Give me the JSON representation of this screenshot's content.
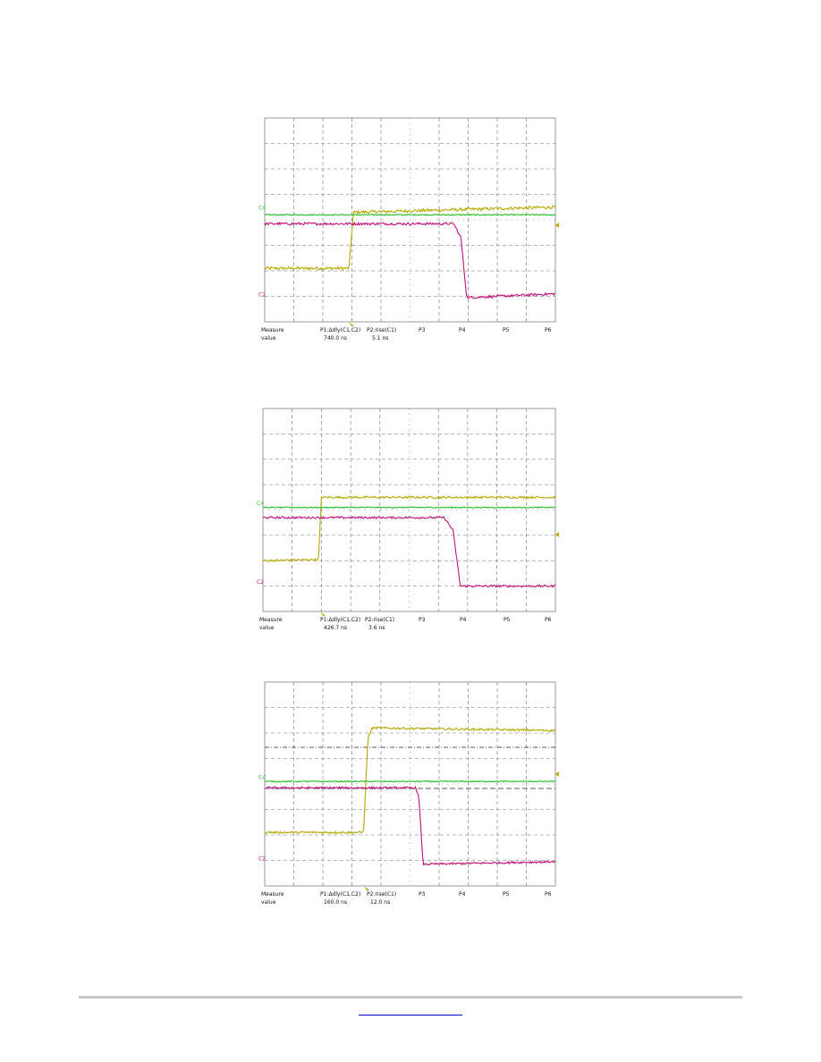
{
  "colors": {
    "ch1": "#b5a800",
    "ch2": "#c0127a",
    "ch4": "#22bb22",
    "grid": "#707070",
    "frame": "#808080",
    "marker": "#b5a800",
    "footer_rule": "#c8c8c8",
    "link": "#0000cc"
  },
  "footer": {
    "link_text": ""
  },
  "chart_data": [
    {
      "type": "line",
      "title": "",
      "grid": true,
      "xlim": [
        0,
        10
      ],
      "ylim": [
        0,
        8
      ],
      "channel_labels": [
        {
          "text": "C4",
          "color": "#22bb22",
          "y": 4.4
        },
        {
          "text": "C2",
          "color": "#c0127a",
          "y": 1.0
        }
      ],
      "measurements": {
        "header": [
          "Measure",
          "P1:Δdly(C1,C2)",
          "P2:rise(C1)",
          "P3",
          "P4",
          "P5",
          "P6"
        ],
        "value_label": "value",
        "values": [
          "740.0 ns",
          "5.1 ns"
        ]
      },
      "series": [
        {
          "channel": "C1",
          "color": "#b5a800",
          "noise": 0.06,
          "points": [
            [
              0,
              2.1
            ],
            [
              2.9,
              2.1
            ],
            [
              3.05,
              4.3
            ],
            [
              10,
              4.5
            ]
          ]
        },
        {
          "channel": "C4",
          "color": "#22bb22",
          "noise": 0.02,
          "points": [
            [
              0,
              4.2
            ],
            [
              10,
              4.2
            ]
          ]
        },
        {
          "channel": "C2",
          "color": "#c0127a",
          "noise": 0.05,
          "points": [
            [
              0,
              3.85
            ],
            [
              6.5,
              3.85
            ],
            [
              6.75,
              3.3
            ],
            [
              6.95,
              0.95
            ],
            [
              10,
              1.1
            ]
          ]
        }
      ]
    },
    {
      "type": "line",
      "title": "",
      "grid": true,
      "xlim": [
        0,
        10
      ],
      "ylim": [
        0,
        8
      ],
      "channel_labels": [
        {
          "text": "C4",
          "color": "#22bb22",
          "y": 4.2
        },
        {
          "text": "C2",
          "color": "#c0127a",
          "y": 1.1
        }
      ],
      "measurements": {
        "header": [
          "Measure",
          "P1:Δdly(C1,C2)",
          "P2:rise(C1)",
          "P3",
          "P4",
          "P5",
          "P6"
        ],
        "value_label": "value",
        "values": [
          "426.7 ns",
          "3.6 ns"
        ]
      },
      "series": [
        {
          "channel": "C1",
          "color": "#b5a800",
          "noise": 0.04,
          "points": [
            [
              0,
              2.0
            ],
            [
              1.9,
              2.05
            ],
            [
              2.0,
              4.5
            ],
            [
              10,
              4.5
            ]
          ]
        },
        {
          "channel": "C4",
          "color": "#22bb22",
          "noise": 0.02,
          "points": [
            [
              0,
              4.1
            ],
            [
              10,
              4.1
            ]
          ]
        },
        {
          "channel": "C2",
          "color": "#c0127a",
          "noise": 0.04,
          "points": [
            [
              0,
              3.7
            ],
            [
              6.2,
              3.7
            ],
            [
              6.5,
              3.2
            ],
            [
              6.75,
              1.0
            ],
            [
              10,
              1.0
            ]
          ]
        }
      ]
    },
    {
      "type": "line",
      "title": "",
      "grid": true,
      "xlim": [
        0,
        10
      ],
      "ylim": [
        0,
        8
      ],
      "channel_labels": [
        {
          "text": "C4",
          "color": "#22bb22",
          "y": 4.2
        },
        {
          "text": "C2",
          "color": "#c0127a",
          "y": 1.0
        }
      ],
      "measurements": {
        "header": [
          "Measure",
          "P1:Δdly(C1,C2)",
          "P2:rise(C1)",
          "P3",
          "P4",
          "P5",
          "P6"
        ],
        "value_label": "value",
        "values": [
          "160.0 ns",
          "12.0 ns"
        ]
      },
      "series": [
        {
          "channel": "C1",
          "color": "#b5a800",
          "noise": 0.04,
          "points": [
            [
              0,
              2.1
            ],
            [
              3.4,
              2.1
            ],
            [
              3.55,
              5.8
            ],
            [
              3.7,
              6.2
            ],
            [
              10,
              6.1
            ]
          ]
        },
        {
          "channel": "C4",
          "color": "#22bb22",
          "noise": 0.02,
          "points": [
            [
              0,
              4.1
            ],
            [
              10,
              4.1
            ]
          ]
        },
        {
          "channel": "C2",
          "color": "#c0127a",
          "noise": 0.04,
          "points": [
            [
              0,
              3.85
            ],
            [
              5.2,
              3.85
            ],
            [
              5.3,
              3.5
            ],
            [
              5.45,
              0.85
            ],
            [
              10,
              0.95
            ]
          ]
        }
      ]
    }
  ]
}
